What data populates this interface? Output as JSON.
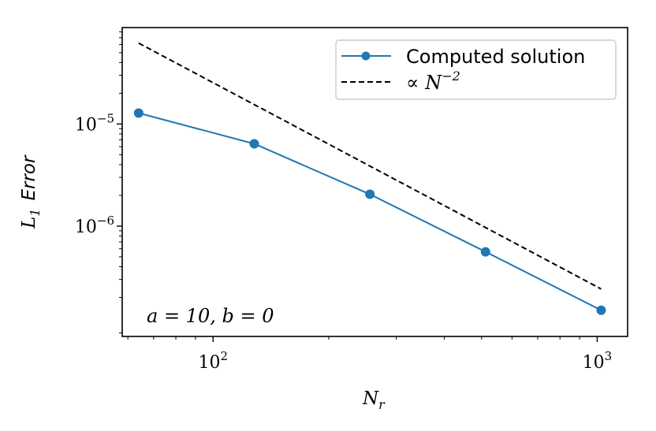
{
  "chart_data": {
    "type": "line",
    "xscale": "log",
    "yscale": "log",
    "xlim": [
      58,
      1200
    ],
    "ylim": [
      8.3e-08,
      8.8e-05
    ],
    "x_ticks": [
      {
        "value": 100,
        "base": "10",
        "exp": "2"
      },
      {
        "value": 1000,
        "base": "10",
        "exp": "3"
      }
    ],
    "y_ticks": [
      {
        "value": 1e-05,
        "base": "10",
        "exp": "−5"
      },
      {
        "value": 1e-06,
        "base": "10",
        "exp": "−6"
      }
    ],
    "xlabel": {
      "main": "N",
      "sub": "r"
    },
    "ylabel": {
      "main": "L",
      "sub": "1",
      "word": "Error"
    },
    "series": [
      {
        "name": "Computed solution",
        "color": "#1f77b4",
        "style": "solid",
        "marker": "circle",
        "x": [
          64,
          128,
          256,
          512,
          1024
        ],
        "y": [
          1.28e-05,
          6.4e-06,
          2.05e-06,
          5.6e-07,
          1.5e-07
        ]
      },
      {
        "name": "∝ N^−2",
        "color": "#000000",
        "style": "dashed",
        "marker": "none",
        "x": [
          64,
          1024
        ],
        "y": [
          6.2e-05,
          2.42e-07
        ]
      }
    ],
    "legend": {
      "placement": "top-right",
      "entries": [
        {
          "text": "Computed solution"
        },
        {
          "symbol": "∝",
          "var": "N",
          "exp": "−2"
        }
      ]
    },
    "annotation": "a = 10, b = 0",
    "grid": false
  }
}
